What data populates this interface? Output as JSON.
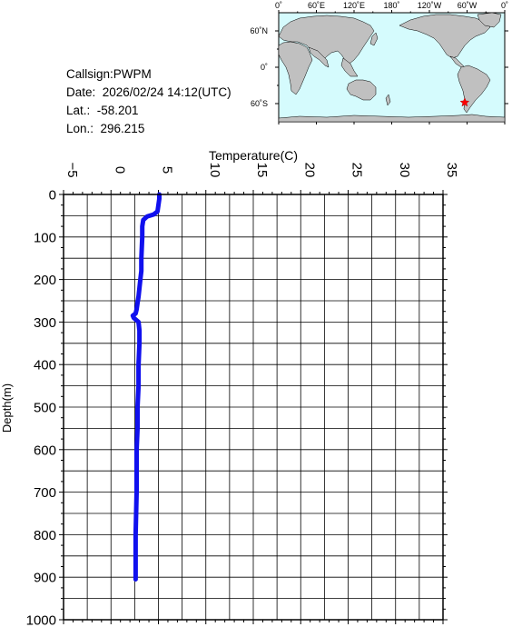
{
  "station": {
    "callsign": "Callsign:PWPM",
    "date": "Date:  2026/02/24 14:12(UTC)",
    "lat": "Lat.:  -58.201",
    "lon": "Lon.:  296.215"
  },
  "map": {
    "top_labels": [
      "0˚",
      "60˚E",
      "120˚E",
      "180˚",
      "120˚W",
      "60˚W",
      "0˚"
    ],
    "left_labels": [
      "60˚N",
      "0˚",
      "60˚S"
    ],
    "ocean_color": "#d5fbfd",
    "land_color": "#c0c0c0",
    "marker": {
      "lat": -58.201,
      "lon": 296.215,
      "color": "#ff0000",
      "icon": "star-icon"
    }
  },
  "chart_data": {
    "type": "line",
    "title": "",
    "xlabel": "Temperature(C)",
    "ylabel": "Depth(m)",
    "xlim": [
      -5,
      35
    ],
    "ylim": [
      0,
      1000
    ],
    "xticks": [
      -5,
      0,
      5,
      10,
      15,
      20,
      25,
      30,
      35
    ],
    "yticks": [
      0,
      100,
      200,
      300,
      400,
      500,
      600,
      700,
      800,
      900,
      1000
    ],
    "grid": true,
    "line_color": "#1010ee",
    "series": [
      {
        "x": [
          5.1,
          5.1,
          5.0,
          4.9,
          4.5,
          3.8,
          3.4,
          3.3,
          3.3,
          3.2,
          3.2,
          3.1,
          3.0,
          2.9,
          2.8,
          2.7,
          2.6,
          2.3,
          2.4,
          2.9,
          3.0,
          3.0,
          2.9,
          2.9,
          2.8,
          2.8,
          2.7,
          2.7,
          2.6,
          2.6,
          2.6
        ],
        "y": [
          0,
          10,
          25,
          40,
          47,
          52,
          60,
          75,
          100,
          150,
          180,
          200,
          220,
          240,
          255,
          270,
          280,
          285,
          290,
          300,
          320,
          350,
          400,
          450,
          500,
          550,
          600,
          700,
          800,
          850,
          905
        ]
      }
    ]
  }
}
